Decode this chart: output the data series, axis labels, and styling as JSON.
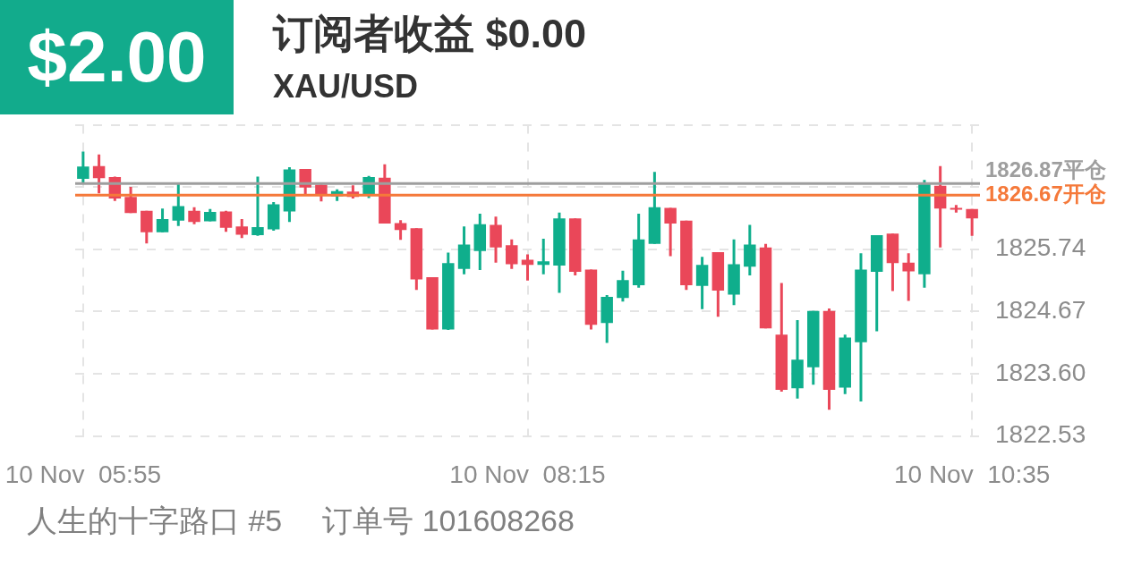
{
  "chart_data": {
    "type": "candlestick",
    "title": "订阅者收益 $0.00",
    "subtitle": "XAU/USD",
    "annotations": [
      "$2.00",
      "人生的十字路口 #5",
      "订单号 101608268"
    ],
    "categories": [
      "10 Nov  05:55",
      null,
      null,
      null,
      null,
      null,
      null,
      null,
      null,
      null,
      null,
      null,
      null,
      null,
      null,
      null,
      null,
      null,
      null,
      null,
      null,
      null,
      null,
      null,
      null,
      null,
      null,
      null,
      "10 Nov  08:15",
      null,
      null,
      null,
      null,
      null,
      null,
      null,
      null,
      null,
      null,
      null,
      null,
      null,
      null,
      null,
      null,
      null,
      null,
      null,
      null,
      null,
      null,
      null,
      null,
      null,
      null,
      null,
      "10 Nov  10:35"
    ],
    "ohlc": [
      [
        1826.95,
        1827.42,
        1826.89,
        1827.16
      ],
      [
        1827.17,
        1827.37,
        1826.7,
        1826.96
      ],
      [
        1826.98,
        1826.99,
        1826.57,
        1826.61
      ],
      [
        1826.64,
        1826.81,
        1826.36,
        1826.36
      ],
      [
        1826.4,
        1826.4,
        1825.84,
        1826.03
      ],
      [
        1826.03,
        1826.44,
        1826.03,
        1826.26
      ],
      [
        1826.23,
        1826.89,
        1826.14,
        1826.48
      ],
      [
        1826.4,
        1826.46,
        1826.17,
        1826.21
      ],
      [
        1826.22,
        1826.43,
        1826.22,
        1826.38
      ],
      [
        1826.39,
        1826.4,
        1826.04,
        1826.11
      ],
      [
        1826.13,
        1826.26,
        1825.93,
        1825.99
      ],
      [
        1825.98,
        1826.99,
        1825.97,
        1826.12
      ],
      [
        1826.08,
        1826.55,
        1826.06,
        1826.51
      ],
      [
        1826.39,
        1827.15,
        1826.21,
        1827.11
      ],
      [
        1827.12,
        1827.12,
        1826.66,
        1826.8
      ],
      [
        1826.85,
        1826.85,
        1826.56,
        1826.67
      ],
      [
        1826.65,
        1826.77,
        1826.57,
        1826.74
      ],
      [
        1826.73,
        1826.84,
        1826.61,
        1826.64
      ],
      [
        1826.66,
        1827.0,
        1826.62,
        1826.98
      ],
      [
        1826.97,
        1827.2,
        1826.18,
        1826.18
      ],
      [
        1826.19,
        1826.24,
        1825.9,
        1826.07
      ],
      [
        1826.1,
        1826.1,
        1825.04,
        1825.22
      ],
      [
        1825.26,
        1825.26,
        1824.36,
        1824.36
      ],
      [
        1824.36,
        1825.68,
        1824.35,
        1825.5
      ],
      [
        1825.4,
        1826.13,
        1825.31,
        1825.82
      ],
      [
        1825.71,
        1826.35,
        1825.38,
        1826.17
      ],
      [
        1826.16,
        1826.3,
        1825.51,
        1825.77
      ],
      [
        1825.81,
        1825.91,
        1825.4,
        1825.48
      ],
      [
        1825.56,
        1825.65,
        1825.2,
        1825.47
      ],
      [
        1825.47,
        1825.92,
        1825.31,
        1825.53
      ],
      [
        1825.46,
        1826.37,
        1824.99,
        1826.27
      ],
      [
        1826.27,
        1826.27,
        1825.29,
        1825.35
      ],
      [
        1825.39,
        1825.39,
        1824.36,
        1824.44
      ],
      [
        1824.47,
        1824.95,
        1824.13,
        1824.92
      ],
      [
        1824.9,
        1825.37,
        1824.84,
        1825.21
      ],
      [
        1825.12,
        1826.35,
        1825.08,
        1825.91
      ],
      [
        1825.83,
        1827.07,
        1825.83,
        1826.46
      ],
      [
        1826.45,
        1826.45,
        1825.62,
        1826.18
      ],
      [
        1826.23,
        1826.23,
        1825.04,
        1825.12
      ],
      [
        1825.11,
        1825.61,
        1824.71,
        1825.47
      ],
      [
        1825.69,
        1825.69,
        1824.58,
        1825.03
      ],
      [
        1824.96,
        1825.91,
        1824.78,
        1825.48
      ],
      [
        1825.44,
        1826.16,
        1825.29,
        1825.82
      ],
      [
        1825.77,
        1825.83,
        1824.38,
        1824.38
      ],
      [
        1824.27,
        1825.16,
        1823.29,
        1823.32
      ],
      [
        1823.35,
        1824.52,
        1823.17,
        1823.84
      ],
      [
        1823.71,
        1824.68,
        1823.41,
        1824.68
      ],
      [
        1824.68,
        1824.72,
        1822.98,
        1823.32
      ],
      [
        1823.36,
        1824.27,
        1823.25,
        1824.22
      ],
      [
        1824.14,
        1825.67,
        1823.12,
        1825.39
      ],
      [
        1825.35,
        1825.98,
        1824.33,
        1825.98
      ],
      [
        1826.01,
        1826.01,
        1825.02,
        1825.5
      ],
      [
        1825.51,
        1825.67,
        1824.85,
        1825.36
      ],
      [
        1825.31,
        1826.93,
        1825.08,
        1826.89
      ],
      [
        1826.83,
        1827.17,
        1825.77,
        1826.44
      ],
      [
        1826.45,
        1826.5,
        1826.37,
        1826.42
      ],
      [
        1826.43,
        1826.43,
        1825.97,
        1826.27
      ]
    ],
    "colors": [
      "#0fae8c",
      "#ea4759",
      "#ea4759",
      "#ea4759",
      "#ea4759",
      "#0fae8c",
      "#0fae8c",
      "#ea4759",
      "#0fae8c",
      "#ea4759",
      "#ea4759",
      "#0fae8c",
      "#0fae8c",
      "#0fae8c",
      "#ea4759",
      "#ea4759",
      "#0fae8c",
      "#ea4759",
      "#0fae8c",
      "#ea4759",
      "#ea4759",
      "#ea4759",
      "#ea4759",
      "#0fae8c",
      "#0fae8c",
      "#0fae8c",
      "#ea4759",
      "#ea4759",
      "#ea4759",
      "#0fae8c",
      "#0fae8c",
      "#ea4759",
      "#ea4759",
      "#0fae8c",
      "#0fae8c",
      "#0fae8c",
      "#0fae8c",
      "#ea4759",
      "#ea4759",
      "#0fae8c",
      "#ea4759",
      "#0fae8c",
      "#0fae8c",
      "#ea4759",
      "#ea4759",
      "#0fae8c",
      "#0fae8c",
      "#ea4759",
      "#0fae8c",
      "#0fae8c",
      "#0fae8c",
      "#ea4759",
      "#ea4759",
      "#0fae8c",
      "#ea4759",
      "#ea4759",
      "#ea4759"
    ],
    "ylim": [
      1822.53,
      1827.88
    ],
    "yticks": [
      1822.53,
      {
        "value": 1823.6,
        "label": "1823.60"
      },
      1824.67,
      1825.74,
      {
        "value": 1826.81,
        "label": null
      },
      {
        "value": 1827.88,
        "label": null
      }
    ],
    "ref_lines": [
      {
        "axis": "y",
        "value": 1826.87,
        "label": "1826.87平仓",
        "color": "#9e9e9e"
      },
      {
        "axis": "y",
        "value": 1826.67,
        "label": "1826.67开仓",
        "color": "#f5793a"
      }
    ],
    "grid": true
  }
}
